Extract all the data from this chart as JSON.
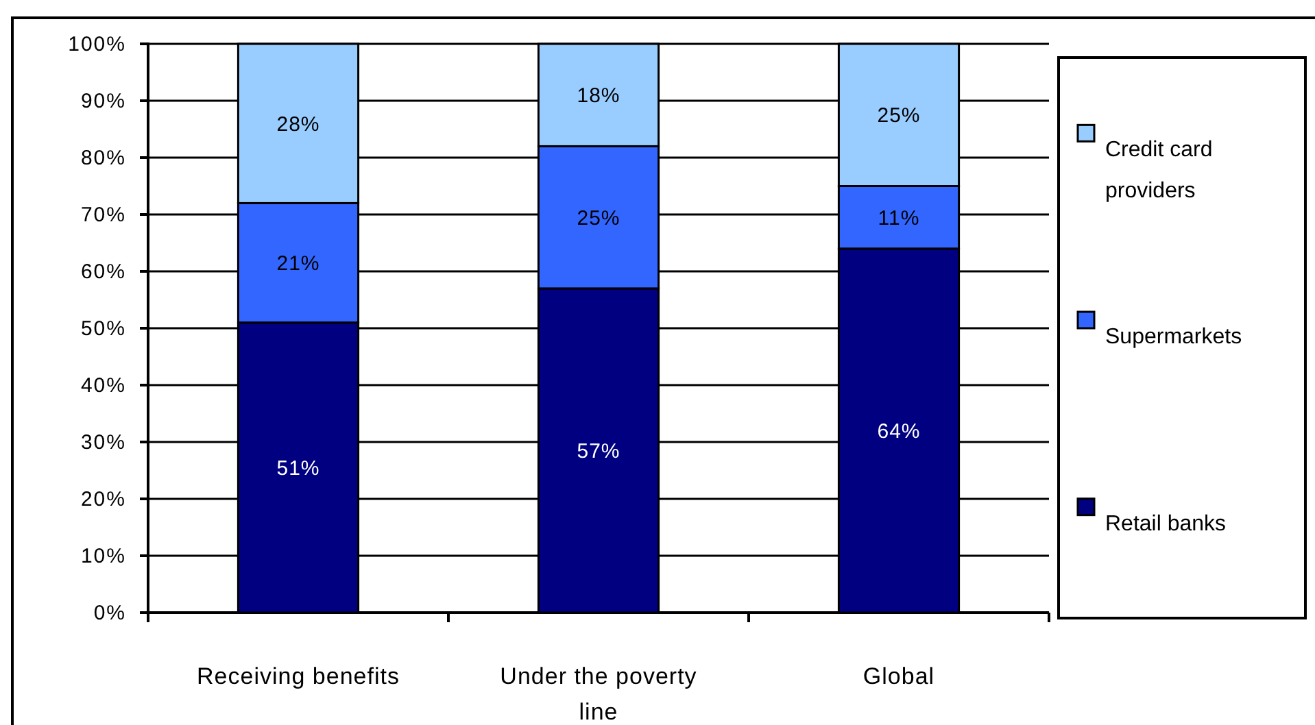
{
  "chart_data": {
    "type": "bar",
    "stacked": true,
    "categories": [
      "Receiving benefits",
      "Under the poverty line",
      "Global"
    ],
    "series": [
      {
        "name": "Retail banks",
        "color": "#000080",
        "values": [
          51,
          57,
          64
        ],
        "value_labels": [
          "51%",
          "57%",
          "64%"
        ]
      },
      {
        "name": "Supermarkets",
        "color": "#3366ff",
        "values": [
          21,
          25,
          11
        ],
        "value_labels": [
          "21%",
          "25%",
          "11%"
        ]
      },
      {
        "name": "Credit card providers",
        "color": "#99ccff",
        "values": [
          28,
          18,
          25
        ],
        "value_labels": [
          "28%",
          "18%",
          "25%"
        ]
      }
    ],
    "ylim": [
      0,
      100
    ],
    "yticks": [
      {
        "value": 0,
        "label": "0%"
      },
      {
        "value": 10,
        "label": "10%"
      },
      {
        "value": 20,
        "label": "20%"
      },
      {
        "value": 30,
        "label": "30%"
      },
      {
        "value": 40,
        "label": "40%"
      },
      {
        "value": 50,
        "label": "50%"
      },
      {
        "value": 60,
        "label": "60%"
      },
      {
        "value": 70,
        "label": "70%"
      },
      {
        "value": 80,
        "label": "80%"
      },
      {
        "value": 90,
        "label": "90%"
      },
      {
        "value": 100,
        "label": "100%"
      }
    ],
    "grid": "y",
    "legend": "right"
  }
}
